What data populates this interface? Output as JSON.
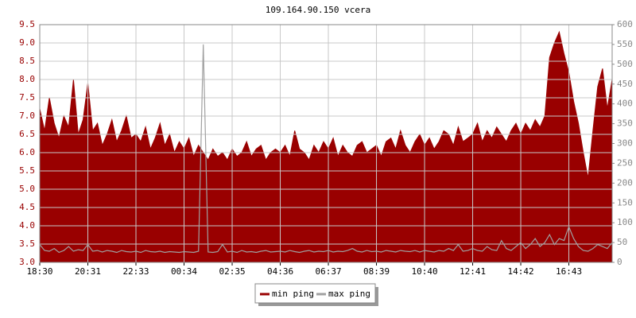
{
  "chart_data": {
    "type": "area",
    "title": "109.164.90.150 vcera",
    "xlim": [
      0,
      119
    ],
    "xticks": [
      {
        "value": 0,
        "label": "18:30"
      },
      {
        "value": 10,
        "label": "20:31"
      },
      {
        "value": 20,
        "label": "22:33"
      },
      {
        "value": 30,
        "label": "00:34"
      },
      {
        "value": 40,
        "label": "02:35"
      },
      {
        "value": 50,
        "label": "04:36"
      },
      {
        "value": 60,
        "label": "06:37"
      },
      {
        "value": 70,
        "label": "08:39"
      },
      {
        "value": 80,
        "label": "10:40"
      },
      {
        "value": 90,
        "label": "12:41"
      },
      {
        "value": 100,
        "label": "14:42"
      },
      {
        "value": 110,
        "label": "16:43"
      }
    ],
    "ylim": [
      3.0,
      9.5
    ],
    "yticks": [
      {
        "value": 3,
        "label": "3.0"
      },
      3.5,
      {
        "value": 4,
        "label": "4.0"
      },
      4.5,
      {
        "value": 5,
        "label": "5.0"
      },
      5.5,
      {
        "value": 6,
        "label": "6.0"
      },
      6.5,
      {
        "value": 7,
        "label": "7.0"
      },
      7.5,
      {
        "value": 8,
        "label": "8.0"
      },
      8.5,
      {
        "value": 9,
        "label": "9.0"
      },
      9.5
    ],
    "y2lim": [
      0,
      600
    ],
    "y2ticks": [
      0,
      50,
      100,
      150,
      200,
      250,
      300,
      350,
      400,
      450,
      500,
      550,
      600
    ],
    "grid": true,
    "legend": "bottom",
    "series": [
      {
        "name": "min ping",
        "color": "#990000",
        "values": [
          7.2,
          6.6,
          7.5,
          6.8,
          6.4,
          7.0,
          6.7,
          8.0,
          6.5,
          6.9,
          7.9,
          6.6,
          6.8,
          6.2,
          6.5,
          6.9,
          6.3,
          6.6,
          7.0,
          6.4,
          6.5,
          6.3,
          6.7,
          6.1,
          6.4,
          6.8,
          6.2,
          6.5,
          6.0,
          6.3,
          6.1,
          6.4,
          5.9,
          6.2,
          6.0,
          5.8,
          6.1,
          5.9,
          6.0,
          5.8,
          6.1,
          5.9,
          6.0,
          6.3,
          5.9,
          6.1,
          6.2,
          5.8,
          6.0,
          6.1,
          6.0,
          6.2,
          5.9,
          6.6,
          6.1,
          6.0,
          5.8,
          6.2,
          6.0,
          6.3,
          6.1,
          6.4,
          5.9,
          6.2,
          6.0,
          5.9,
          6.2,
          6.3,
          6.0,
          6.1,
          6.2,
          5.9,
          6.3,
          6.4,
          6.1,
          6.6,
          6.2,
          6.0,
          6.3,
          6.5,
          6.2,
          6.4,
          6.1,
          6.3,
          6.6,
          6.5,
          6.2,
          6.7,
          6.3,
          6.4,
          6.5,
          6.8,
          6.3,
          6.6,
          6.4,
          6.7,
          6.5,
          6.3,
          6.6,
          6.8,
          6.5,
          6.8,
          6.6,
          6.9,
          6.7,
          7.0,
          8.6,
          9.0,
          9.3,
          8.7,
          8.2,
          7.4,
          6.8,
          6.0,
          5.3,
          6.6,
          7.8,
          8.3,
          7.2,
          8.0
        ]
      },
      {
        "name": "max ping",
        "color": "#a0a0a0",
        "axis": "y2",
        "values": [
          45,
          30,
          28,
          35,
          25,
          30,
          40,
          28,
          32,
          30,
          45,
          28,
          30,
          26,
          30,
          28,
          25,
          30,
          27,
          26,
          28,
          25,
          30,
          27,
          26,
          28,
          25,
          27,
          26,
          25,
          27,
          26,
          25,
          28,
          550,
          26,
          25,
          27,
          45,
          26,
          28,
          25,
          30,
          26,
          27,
          25,
          28,
          30,
          26,
          27,
          28,
          26,
          30,
          27,
          25,
          28,
          30,
          26,
          28,
          27,
          30,
          26,
          28,
          27,
          30,
          35,
          28,
          26,
          30,
          27,
          28,
          26,
          30,
          28,
          26,
          30,
          28,
          27,
          30,
          26,
          30,
          28,
          26,
          30,
          28,
          35,
          30,
          45,
          28,
          30,
          35,
          30,
          28,
          40,
          32,
          30,
          55,
          35,
          30,
          40,
          50,
          35,
          45,
          60,
          40,
          50,
          70,
          45,
          60,
          55,
          90,
          60,
          40,
          30,
          28,
          35,
          45,
          40,
          35,
          50
        ]
      }
    ]
  }
}
